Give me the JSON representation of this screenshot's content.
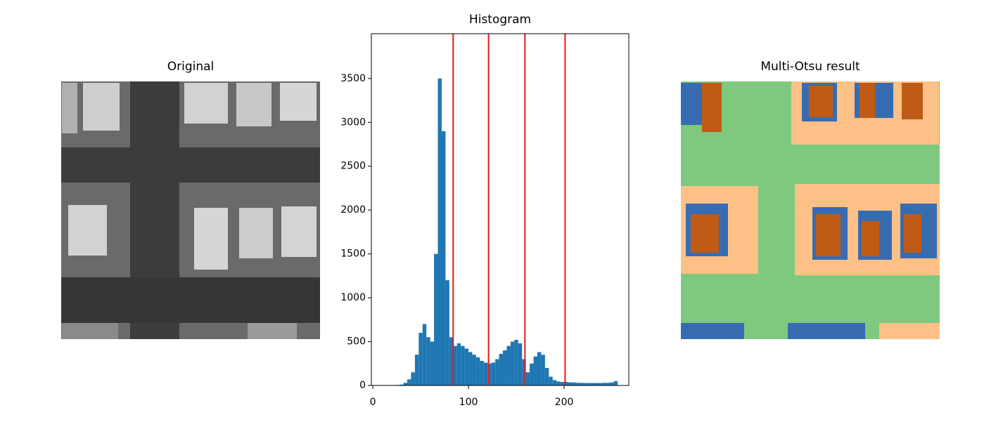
{
  "chart_data": [
    {
      "type": "image",
      "title": "Original"
    },
    {
      "type": "histogram",
      "title": "Histogram",
      "color": "#1f77b4",
      "bins": [
        0,
        4,
        8,
        12,
        16,
        20,
        24,
        28,
        32,
        36,
        40,
        44,
        48,
        52,
        56,
        60,
        64,
        68,
        72,
        76,
        80,
        84,
        88,
        92,
        96,
        100,
        104,
        108,
        112,
        116,
        120,
        124,
        128,
        132,
        136,
        140,
        144,
        148,
        152,
        156,
        160,
        164,
        168,
        172,
        176,
        180,
        184,
        188,
        192,
        196,
        200,
        204,
        208,
        212,
        216,
        220,
        224,
        228,
        232,
        236,
        240,
        244,
        248,
        252,
        256
      ],
      "counts": [
        0,
        0,
        0,
        0,
        0,
        0,
        5,
        10,
        30,
        70,
        150,
        350,
        600,
        700,
        550,
        500,
        1500,
        3500,
        2900,
        1200,
        550,
        450,
        480,
        450,
        420,
        380,
        350,
        320,
        280,
        260,
        250,
        260,
        300,
        360,
        400,
        450,
        500,
        520,
        480,
        300,
        150,
        250,
        330,
        380,
        350,
        200,
        100,
        60,
        45,
        40,
        40,
        35,
        35,
        30,
        30,
        28,
        28,
        28,
        28,
        28,
        30,
        30,
        35,
        50
      ],
      "thresholds": [
        84,
        121,
        159,
        201
      ],
      "threshold_color": "#e41a1c",
      "xlim": [
        -1.5,
        267.6
      ],
      "ylim": [
        0,
        4011
      ],
      "xticks": [
        0,
        100,
        200
      ],
      "yticks": [
        0,
        500,
        1000,
        1500,
        2000,
        2500,
        3000,
        3500
      ]
    },
    {
      "type": "image",
      "title": "Multi-Otsu result"
    }
  ]
}
